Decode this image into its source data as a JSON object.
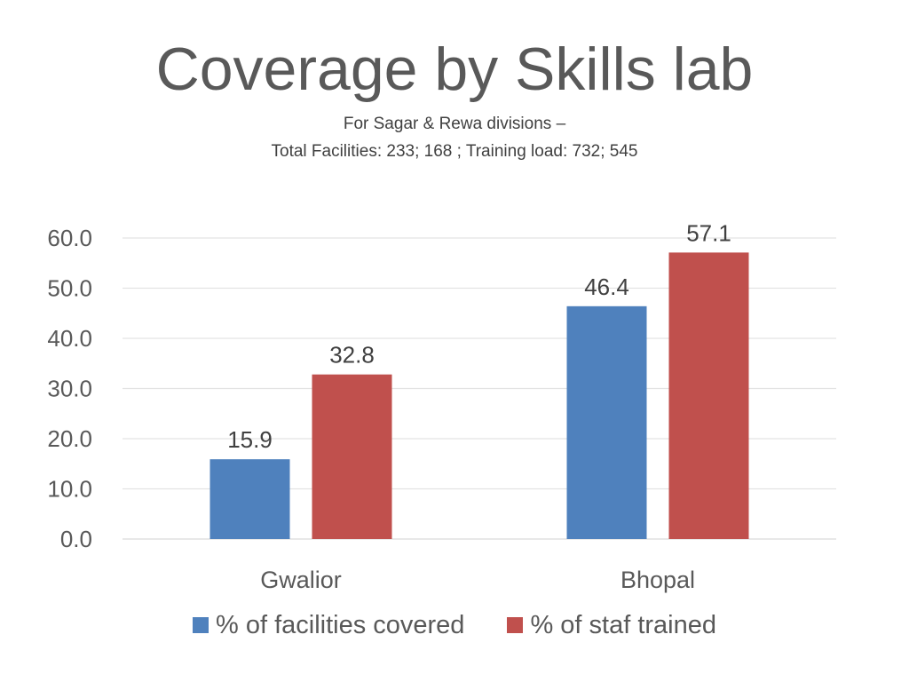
{
  "chart_data": {
    "type": "bar",
    "title": "Coverage by Skills lab",
    "subtitle": [
      "For Sagar & Rewa divisions –",
      "Total Facilities: 233; 168 ; Training load: 732; 545"
    ],
    "categories": [
      "Gwalior",
      "Bhopal"
    ],
    "series": [
      {
        "name": "% of facilities covered",
        "values": [
          15.9,
          46.4
        ],
        "labels": [
          "15.9",
          "46.4"
        ],
        "color": "#4f81bd"
      },
      {
        "name": "% of staf trained",
        "values": [
          32.8,
          57.1
        ],
        "labels": [
          "32.8",
          "57.1"
        ],
        "color": "#c0504d"
      }
    ],
    "yaxis": {
      "min": 0,
      "max": 60,
      "ticks": [
        "0.0",
        "10.0",
        "20.0",
        "30.0",
        "40.0",
        "50.0",
        "60.0"
      ]
    },
    "grid": true,
    "legend_position": "bottom"
  }
}
